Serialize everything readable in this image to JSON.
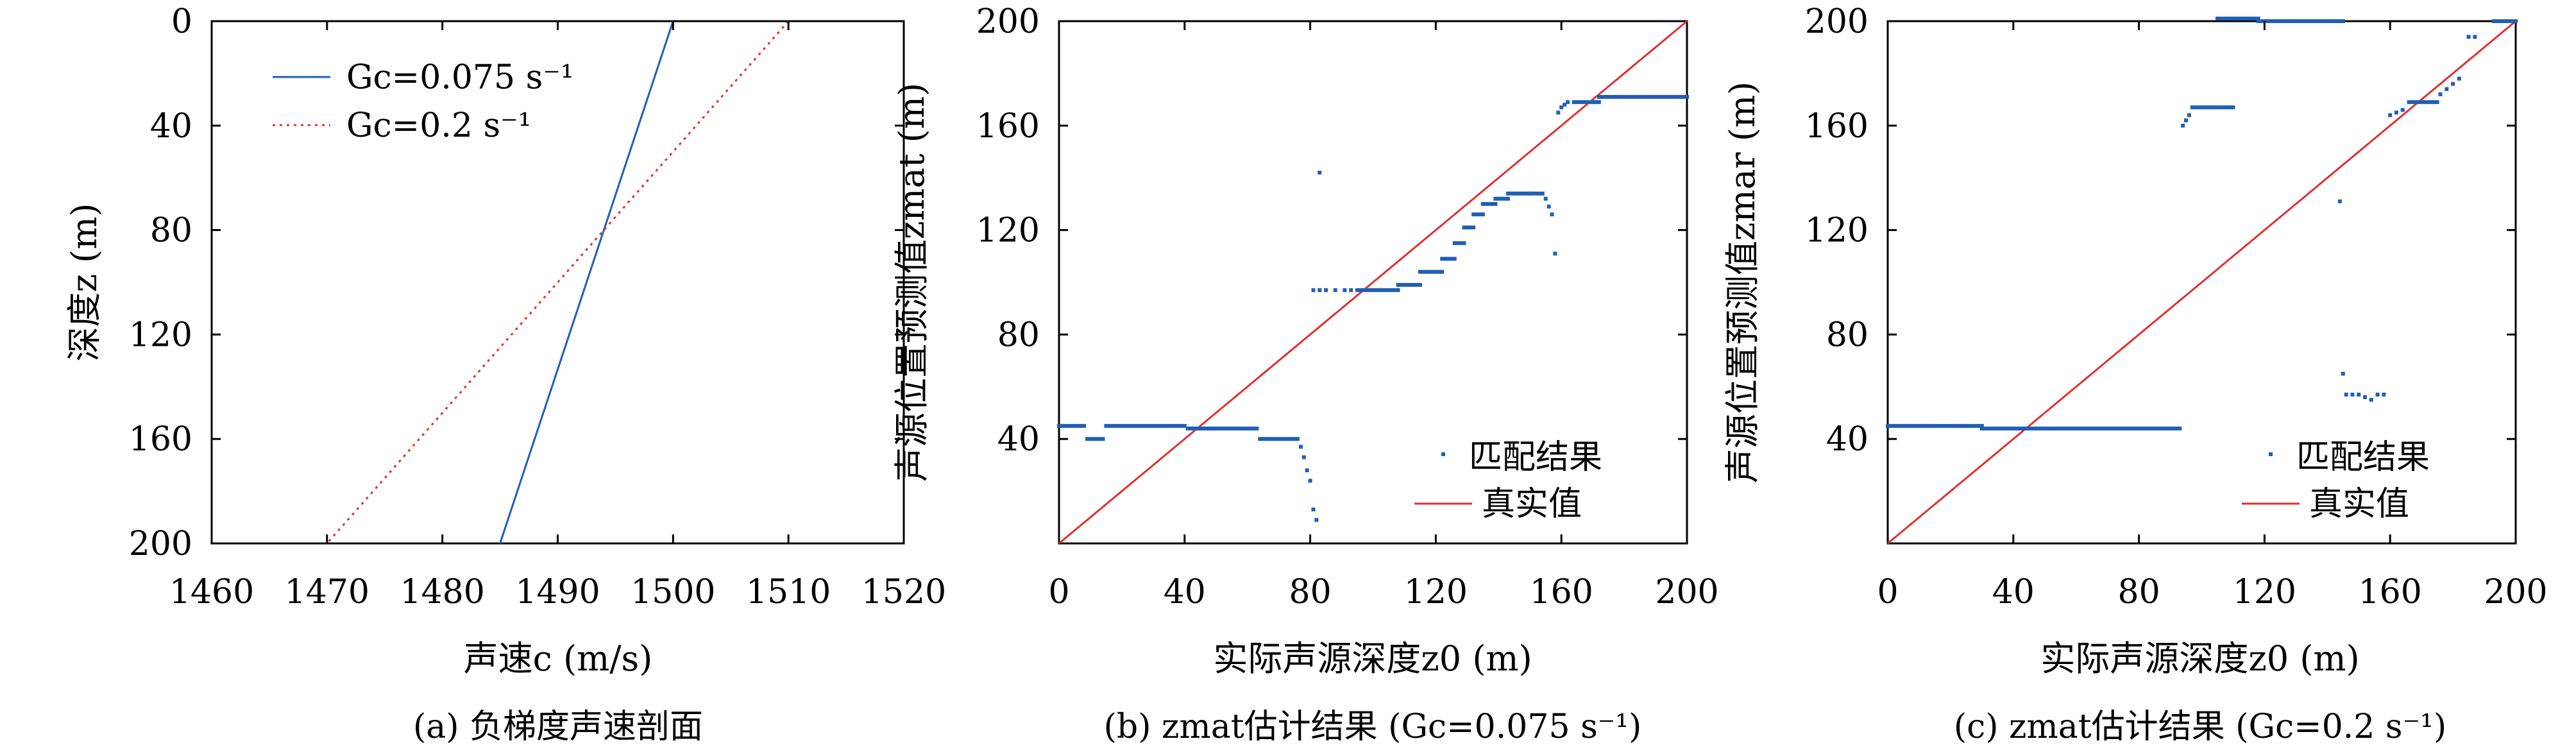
{
  "chart_data": [
    {
      "type": "line",
      "panel": "a",
      "caption": "(a) 负梯度声速剖面",
      "xlabel": "声速c (m/s)",
      "ylabel": "深度z (m)",
      "xlim": [
        1460,
        1520
      ],
      "ylim": [
        0,
        200
      ],
      "y_inverted": true,
      "xticks": [
        "1460",
        "1470",
        "1480",
        "1490",
        "1500",
        "1510",
        "1520"
      ],
      "yticks": [
        "0",
        "40",
        "80",
        "120",
        "160",
        "200"
      ],
      "legend": [
        "Gc=0.075 s⁻¹",
        "Gc=0.2 s⁻¹"
      ],
      "series": [
        {
          "name": "Gc=0.075 s⁻¹",
          "style": "solid",
          "color": "#1f5fb4",
          "points": [
            [
              1500,
              0
            ],
            [
              1485,
              200
            ]
          ]
        },
        {
          "name": "Gc=0.2 s⁻¹",
          "style": "dotted",
          "color": "#e03030",
          "points": [
            [
              1510,
              0
            ],
            [
              1470,
              200
            ]
          ]
        }
      ]
    },
    {
      "type": "scatter",
      "panel": "b",
      "caption": "(b) zmat估计结果 (Gc=0.075 s⁻¹)",
      "xlabel": "实际声源深度z0 (m)",
      "ylabel": "声源位置预测值zmat (m)",
      "xlim": [
        0,
        200
      ],
      "ylim": [
        0,
        200
      ],
      "xticks": [
        "0",
        "40",
        "80",
        "120",
        "160",
        "200"
      ],
      "yticks": [
        "40",
        "80",
        "120",
        "160",
        "200"
      ],
      "legend": [
        "匹配结果",
        "真实值"
      ],
      "segments": [
        {
          "x0": 0,
          "x1": 8,
          "y": 45
        },
        {
          "x0": 9,
          "x1": 14,
          "y": 40
        },
        {
          "x0": 15,
          "x1": 40,
          "y": 45
        },
        {
          "x0": 41,
          "x1": 63,
          "y": 44
        },
        {
          "x0": 64,
          "x1": 76,
          "y": 40
        },
        {
          "x0": 95,
          "x1": 108,
          "y": 97
        },
        {
          "x0": 108,
          "x1": 115,
          "y": 99
        },
        {
          "x0": 115,
          "x1": 122,
          "y": 104
        },
        {
          "x0": 122,
          "x1": 126,
          "y": 109
        },
        {
          "x0": 126,
          "x1": 129,
          "y": 115
        },
        {
          "x0": 129,
          "x1": 132,
          "y": 121
        },
        {
          "x0": 132,
          "x1": 135,
          "y": 126
        },
        {
          "x0": 135,
          "x1": 139,
          "y": 130
        },
        {
          "x0": 139,
          "x1": 143,
          "y": 132
        },
        {
          "x0": 143,
          "x1": 150,
          "y": 134
        },
        {
          "x0": 150,
          "x1": 154,
          "y": 134
        },
        {
          "x0": 164,
          "x1": 172,
          "y": 169
        },
        {
          "x0": 172,
          "x1": 200,
          "y": 171
        }
      ],
      "points": [
        [
          77,
          37
        ],
        [
          78,
          33
        ],
        [
          79,
          28
        ],
        [
          80,
          24
        ],
        [
          81,
          13
        ],
        [
          82,
          9
        ],
        [
          83,
          142
        ],
        [
          81,
          97
        ],
        [
          83,
          97
        ],
        [
          85,
          97
        ],
        [
          88,
          97
        ],
        [
          91,
          97
        ],
        [
          93,
          97
        ],
        [
          155,
          132
        ],
        [
          156,
          129
        ],
        [
          157,
          126
        ],
        [
          158,
          111
        ],
        [
          159,
          165
        ],
        [
          160,
          167
        ],
        [
          161,
          168
        ],
        [
          162,
          169
        ]
      ],
      "truth_line": [
        [
          0,
          0
        ],
        [
          200,
          200
        ]
      ]
    },
    {
      "type": "scatter",
      "panel": "c",
      "caption": "(c) zmat估计结果 (Gc=0.2 s⁻¹)",
      "xlabel": "实际声源深度z0 (m)",
      "ylabel": "声源位置预测值zmar (m)",
      "xlim": [
        0,
        200
      ],
      "ylim": [
        0,
        200
      ],
      "xticks": [
        "0",
        "40",
        "80",
        "120",
        "160",
        "200"
      ],
      "yticks": [
        "40",
        "80",
        "120",
        "160",
        "200"
      ],
      "legend": [
        "匹配结果",
        "真实值"
      ],
      "segments": [
        {
          "x0": 0,
          "x1": 30,
          "y": 45
        },
        {
          "x0": 30,
          "x1": 93,
          "y": 44
        },
        {
          "x0": 97,
          "x1": 110,
          "y": 167
        },
        {
          "x0": 105,
          "x1": 118,
          "y": 201
        },
        {
          "x0": 118,
          "x1": 145,
          "y": 200
        },
        {
          "x0": 166,
          "x1": 175,
          "y": 169
        },
        {
          "x0": 193,
          "x1": 200,
          "y": 200
        }
      ],
      "points": [
        [
          94,
          160
        ],
        [
          95,
          162
        ],
        [
          96,
          164
        ],
        [
          144,
          131
        ],
        [
          145,
          65
        ],
        [
          146,
          57
        ],
        [
          148,
          57
        ],
        [
          150,
          57
        ],
        [
          152,
          56
        ],
        [
          154,
          55
        ],
        [
          156,
          57
        ],
        [
          158,
          57
        ],
        [
          160,
          164
        ],
        [
          162,
          165
        ],
        [
          164,
          166
        ],
        [
          176,
          172
        ],
        [
          178,
          174
        ],
        [
          180,
          176
        ],
        [
          182,
          178
        ],
        [
          185,
          194
        ],
        [
          187,
          194
        ]
      ],
      "truth_line": [
        [
          0,
          0
        ],
        [
          200,
          200
        ]
      ]
    }
  ]
}
